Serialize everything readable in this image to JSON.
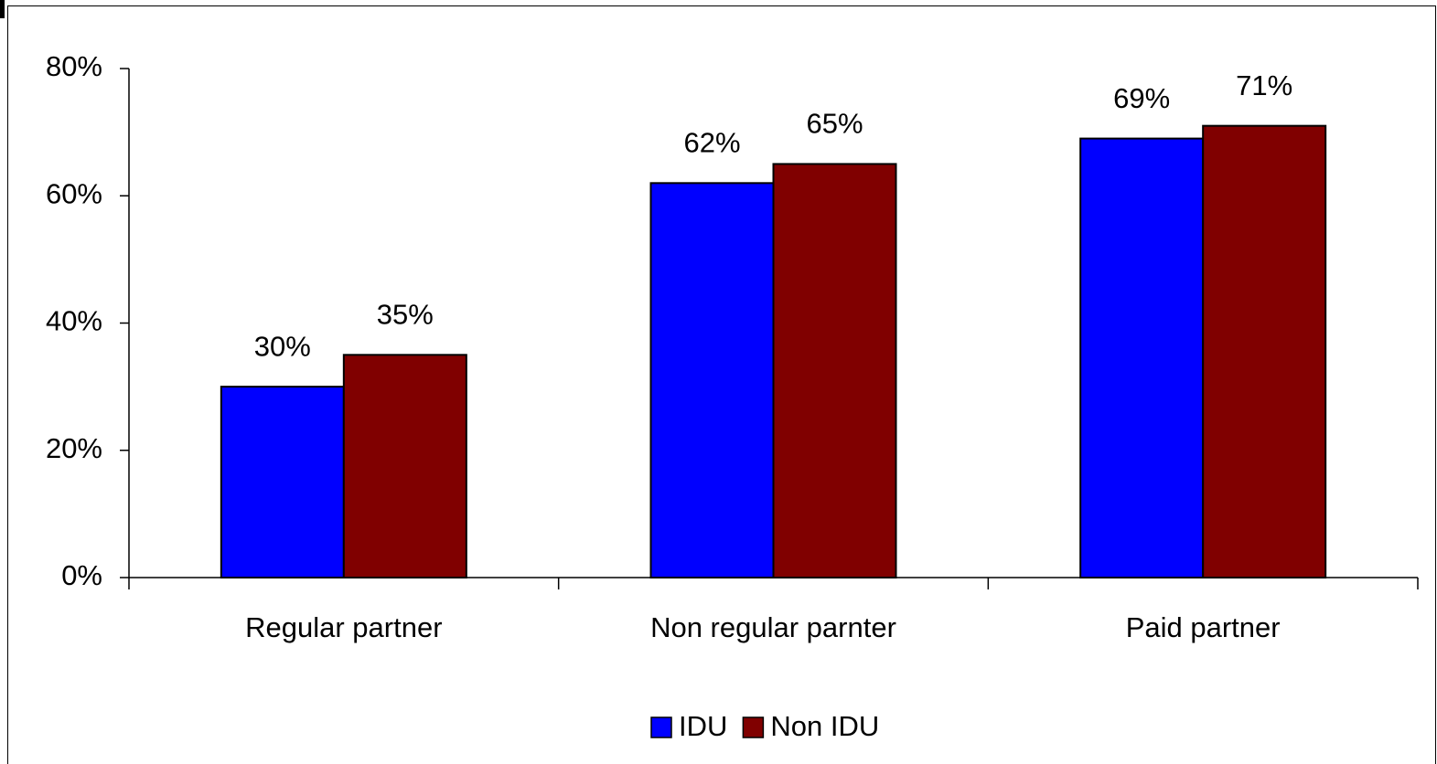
{
  "chart_data": {
    "type": "bar",
    "categories": [
      "Regular partner",
      "Non regular parnter",
      "Paid partner"
    ],
    "series": [
      {
        "name": "IDU",
        "color": "#0000ff",
        "values": [
          30,
          62,
          69
        ],
        "value_labels": [
          "30%",
          "62%",
          "69%"
        ]
      },
      {
        "name": "Non IDU",
        "color": "#800000",
        "values": [
          35,
          65,
          71
        ],
        "value_labels": [
          "35%",
          "65%",
          "71%"
        ]
      }
    ],
    "ylim": [
      0,
      80
    ],
    "yticks": [
      {
        "value": 0,
        "label": "0%"
      },
      {
        "value": 20,
        "label": "20%"
      },
      {
        "value": 40,
        "label": "40%"
      },
      {
        "value": 60,
        "label": "60%"
      },
      {
        "value": 80,
        "label": "80%"
      }
    ],
    "grid": false,
    "legend": "bottom"
  }
}
